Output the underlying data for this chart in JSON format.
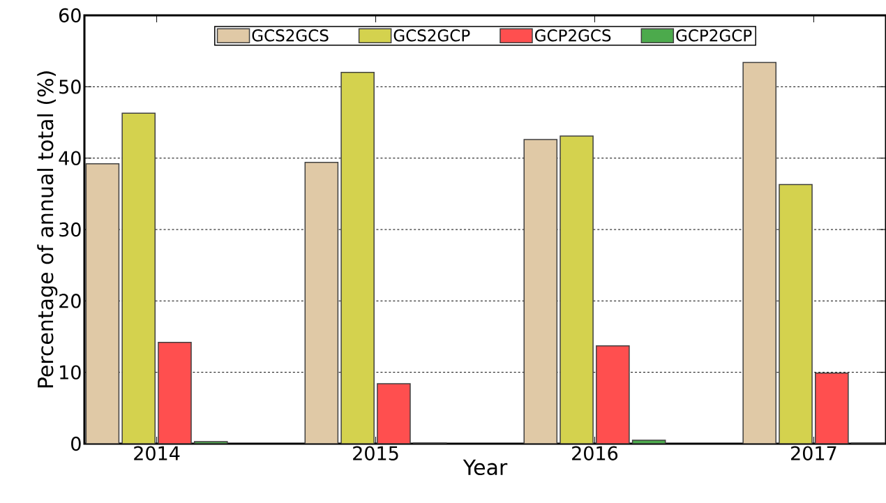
{
  "chart_data": {
    "type": "bar",
    "xlabel": "Year",
    "ylabel": "Percentage of annual total (%)",
    "categories": [
      "2014",
      "2015",
      "2016",
      "2017"
    ],
    "series": [
      {
        "name": "GCS2GCS",
        "color": "#e0c9a6",
        "values": [
          39.2,
          39.4,
          42.6,
          53.4
        ]
      },
      {
        "name": "GCS2GCP",
        "color": "#d4d24e",
        "values": [
          46.3,
          52.0,
          43.1,
          36.3
        ]
      },
      {
        "name": "GCP2GCS",
        "color": "#ff4f4f",
        "values": [
          14.2,
          8.4,
          13.7,
          9.9
        ]
      },
      {
        "name": "GCP2GCP",
        "color": "#4caa4c",
        "values": [
          0.3,
          0.1,
          0.5,
          0.1
        ]
      }
    ],
    "ylim": [
      0,
      60
    ],
    "yticks": [
      0,
      10,
      20,
      30,
      40,
      50,
      60
    ],
    "grid": "y",
    "legend": "top"
  }
}
